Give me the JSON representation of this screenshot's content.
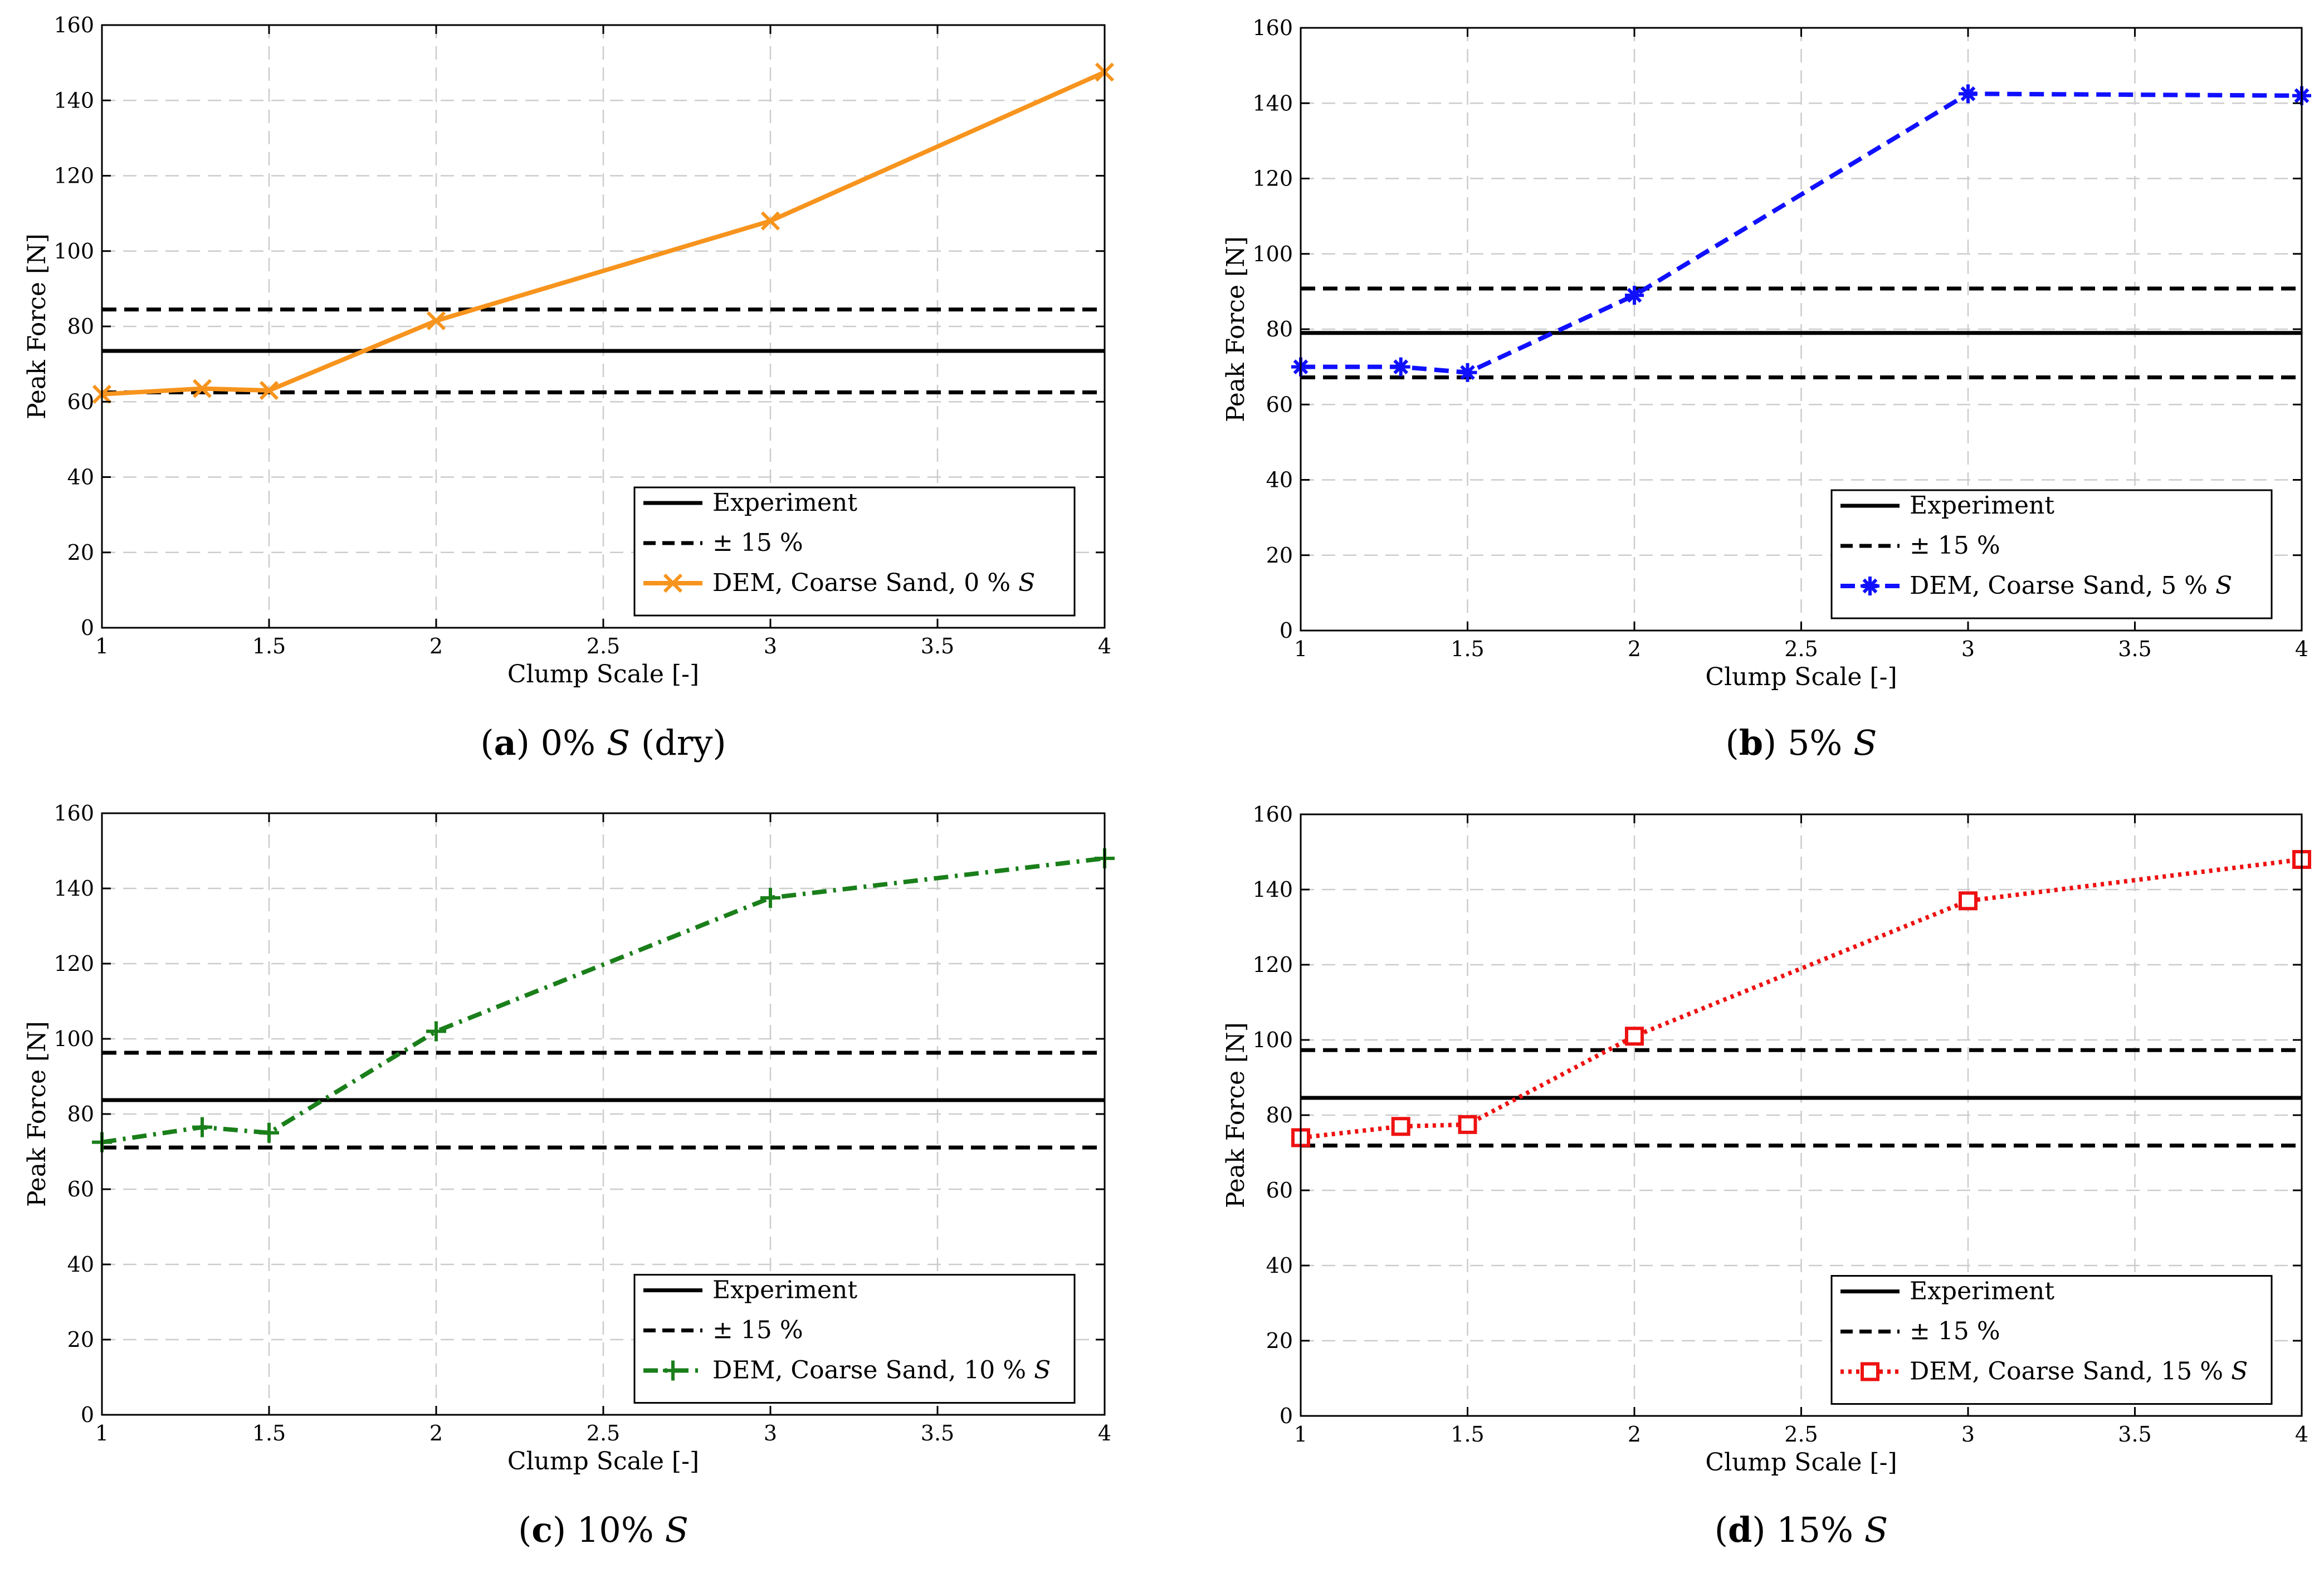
{
  "figure": {
    "xlabel": "Clump Scale [-]",
    "ylabel": "Peak Force [N]",
    "exp_label": "Experiment",
    "band_label": "± 15 %",
    "colors": {
      "axis": "#000000",
      "grid": "#cccccc",
      "experiment": "#000000"
    }
  },
  "chart_data": [
    {
      "type": "line",
      "panel_id": "a",
      "caption": {
        "letter": "(a)",
        "text": " 0% ",
        "symbol": "S",
        "suffix": " (dry)"
      },
      "xlabel": "Clump Scale [-]",
      "ylabel": "Peak Force [N]",
      "xlim": [
        1,
        4
      ],
      "ylim": [
        0,
        160
      ],
      "xticks": [
        1,
        1.5,
        2,
        2.5,
        3,
        3.5,
        4
      ],
      "yticks": [
        0,
        20,
        40,
        60,
        80,
        100,
        120,
        140,
        160
      ],
      "grid": true,
      "legend_position": "bottom-right",
      "experiment": 73.5,
      "band_upper": 84.5,
      "band_lower": 62.5,
      "series": [
        {
          "name": "DEM, Coarse Sand, 0 % S",
          "legend_text": "DEM, Coarse Sand, 0 % ",
          "legend_symbol": "S",
          "color": "#f7941d",
          "marker": "x",
          "dash": "solid",
          "x": [
            1,
            1.3,
            1.5,
            2,
            3,
            4
          ],
          "values": [
            62,
            63.5,
            63,
            81.5,
            108,
            147.5
          ]
        }
      ]
    },
    {
      "type": "line",
      "panel_id": "b",
      "caption": {
        "letter": "(b)",
        "text": " 5% ",
        "symbol": "S",
        "suffix": ""
      },
      "xlabel": "Clump Scale [-]",
      "ylabel": "Peak Force [N]",
      "xlim": [
        1,
        4
      ],
      "ylim": [
        0,
        160
      ],
      "xticks": [
        1,
        1.5,
        2,
        2.5,
        3,
        3.5,
        4
      ],
      "yticks": [
        0,
        20,
        40,
        60,
        80,
        100,
        120,
        140,
        160
      ],
      "grid": true,
      "legend_position": "bottom-right",
      "experiment": 79,
      "band_upper": 90.8,
      "band_lower": 67.2,
      "series": [
        {
          "name": "DEM, Coarse Sand, 5 % S",
          "legend_text": "DEM, Coarse Sand, 5 % ",
          "legend_symbol": "S",
          "color": "#1010ff",
          "marker": "asterisk",
          "dash": "dashed",
          "x": [
            1,
            1.3,
            1.5,
            2,
            3,
            4
          ],
          "values": [
            70,
            70,
            68.5,
            89,
            142.5,
            142
          ]
        }
      ]
    },
    {
      "type": "line",
      "panel_id": "c",
      "caption": {
        "letter": "(c)",
        "text": " 10% ",
        "symbol": "S",
        "suffix": ""
      },
      "xlabel": "Clump Scale [-]",
      "ylabel": "Peak Force [N]",
      "xlim": [
        1,
        4
      ],
      "ylim": [
        0,
        160
      ],
      "xticks": [
        1,
        1.5,
        2,
        2.5,
        3,
        3.5,
        4
      ],
      "yticks": [
        0,
        20,
        40,
        60,
        80,
        100,
        120,
        140,
        160
      ],
      "grid": true,
      "legend_position": "bottom-right",
      "experiment": 83.7,
      "band_upper": 96.3,
      "band_lower": 71.1,
      "series": [
        {
          "name": "DEM, Coarse Sand, 10 % S",
          "legend_text": "DEM, Coarse Sand, 10 % ",
          "legend_symbol": "S",
          "color": "#1a7f1a",
          "marker": "plus",
          "dash": "dashdot",
          "x": [
            1,
            1.3,
            1.5,
            2,
            3,
            4
          ],
          "values": [
            72.5,
            76.5,
            75,
            102,
            137.5,
            148
          ]
        }
      ]
    },
    {
      "type": "line",
      "panel_id": "d",
      "caption": {
        "letter": "(d)",
        "text": " 15% ",
        "symbol": "S",
        "suffix": ""
      },
      "xlabel": "Clump Scale [-]",
      "ylabel": "Peak Force [N]",
      "xlim": [
        1,
        4
      ],
      "ylim": [
        0,
        160
      ],
      "xticks": [
        1,
        1.5,
        2,
        2.5,
        3,
        3.5,
        4
      ],
      "yticks": [
        0,
        20,
        40,
        60,
        80,
        100,
        120,
        140,
        160
      ],
      "grid": true,
      "legend_position": "bottom-right",
      "experiment": 84.6,
      "band_upper": 97.3,
      "band_lower": 71.9,
      "series": [
        {
          "name": "DEM, Coarse Sand, 15 % S",
          "legend_text": "DEM, Coarse Sand, 15 % ",
          "legend_symbol": "S",
          "color": "#ee1111",
          "marker": "square",
          "dash": "dotted",
          "x": [
            1,
            1.3,
            1.5,
            2,
            3,
            4
          ],
          "values": [
            74,
            77,
            77.5,
            101,
            137,
            148
          ]
        }
      ]
    }
  ]
}
